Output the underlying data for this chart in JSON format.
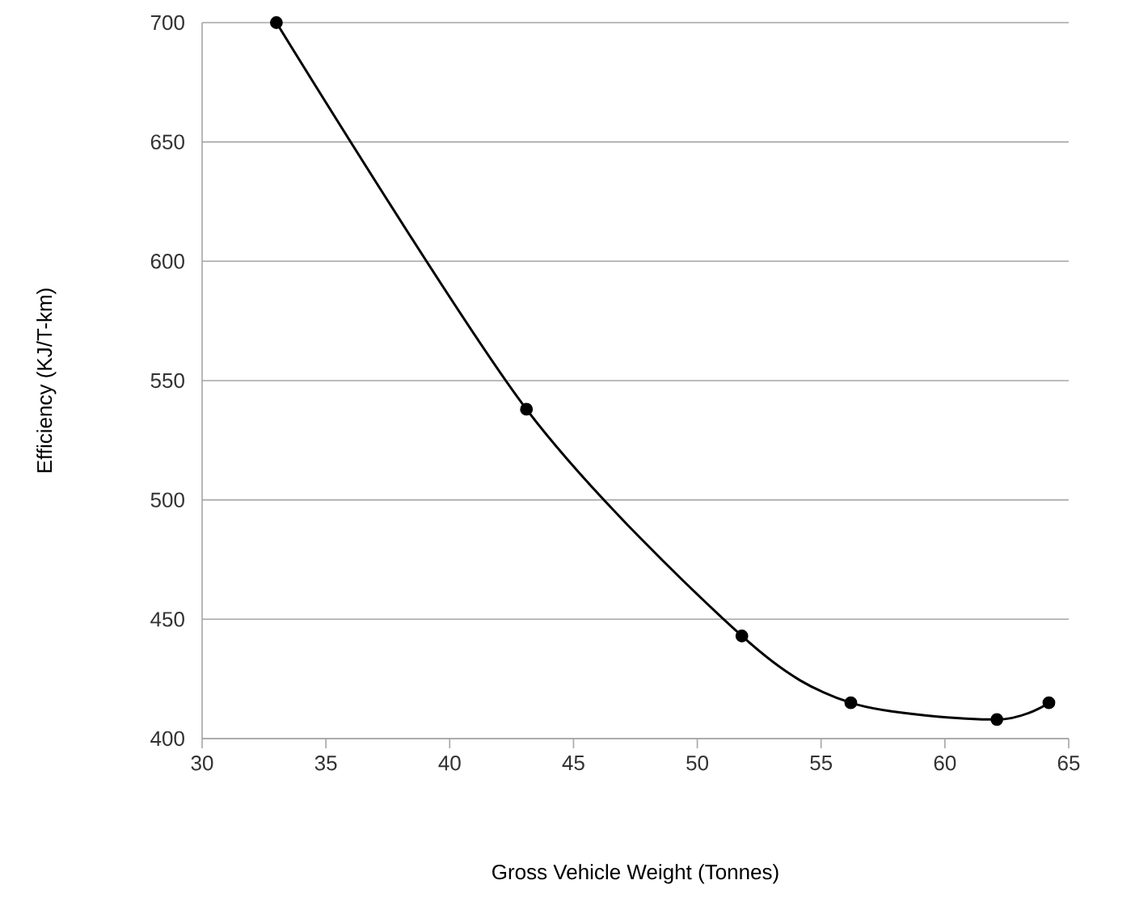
{
  "chart_data": {
    "type": "line",
    "xlabel": "Gross Vehicle Weight (Tonnes)",
    "ylabel": "Efficiency (KJ/T-km)",
    "x": [
      33.0,
      43.1,
      51.8,
      56.2,
      62.1,
      64.2
    ],
    "series": [
      {
        "color": "#000000",
        "values": [
          700,
          538,
          443,
          415,
          408,
          415
        ]
      }
    ],
    "xlim": [
      30,
      65
    ],
    "ylim": [
      400,
      700
    ],
    "xticks": [
      30,
      35,
      40,
      45,
      50,
      55,
      60,
      65
    ],
    "yticks": [
      400,
      450,
      500,
      550,
      600,
      650,
      700
    ],
    "grid": "y",
    "marker": "circle",
    "line_style": "solid"
  }
}
